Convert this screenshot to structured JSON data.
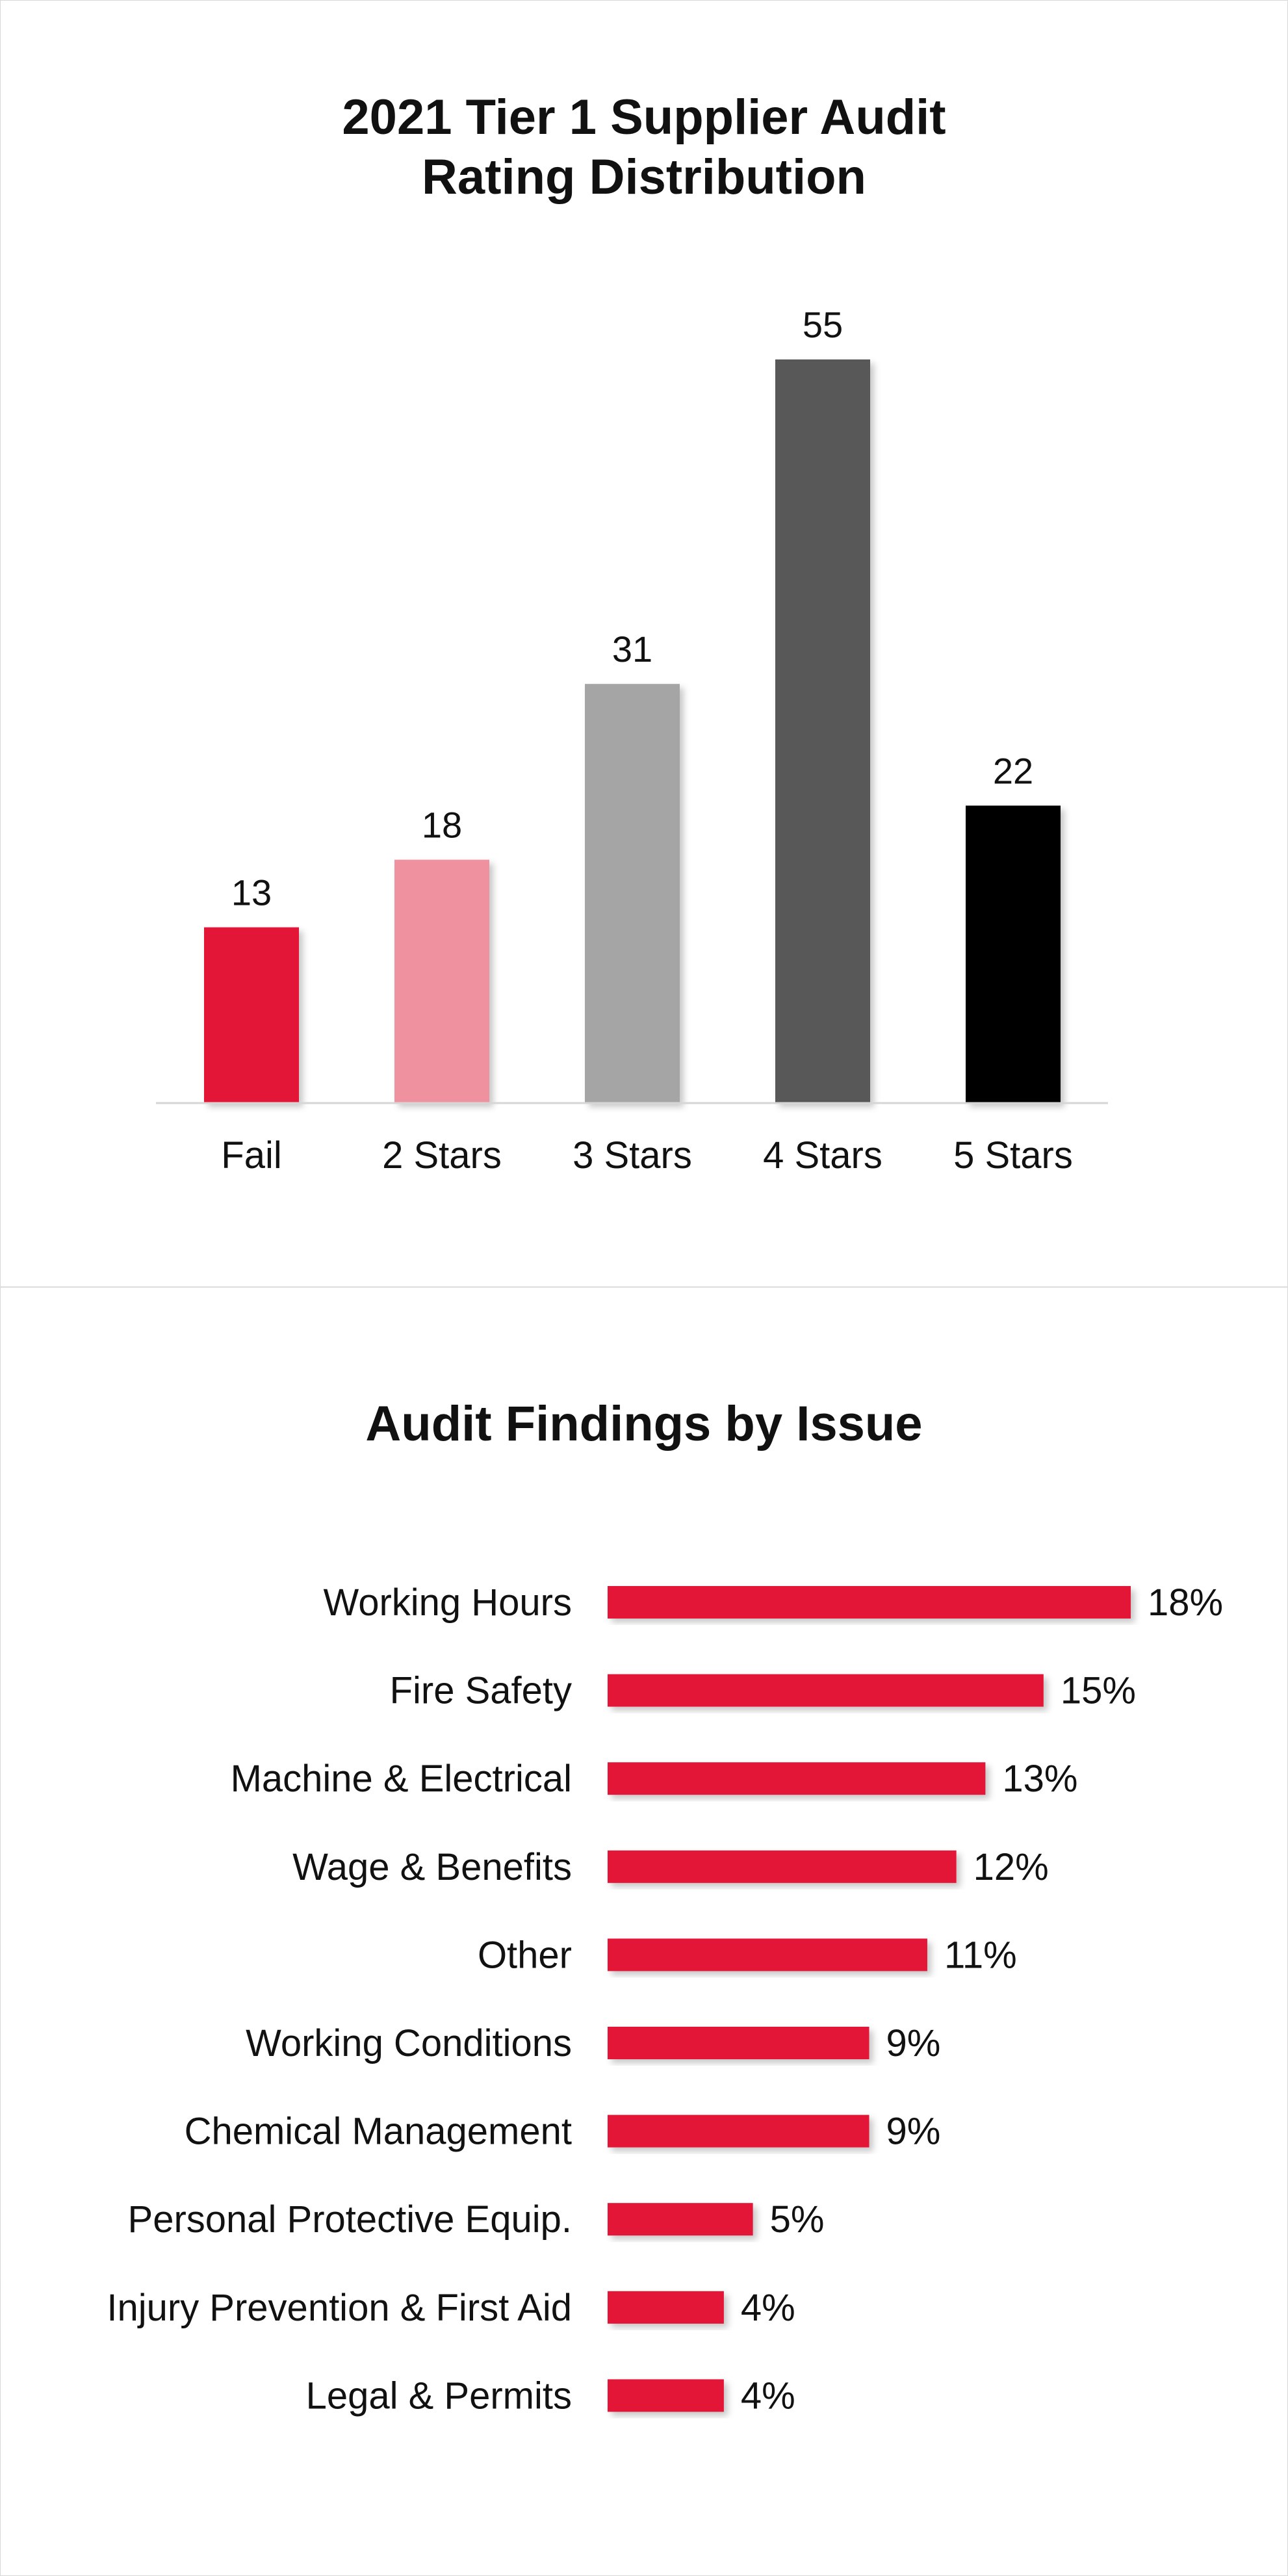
{
  "chart_data": [
    {
      "type": "bar",
      "title": "2021 Tier 1 Supplier Audit Rating Distribution",
      "title_lines": [
        "2021 Tier 1 Supplier Audit",
        "Rating Distribution"
      ],
      "categories": [
        "Fail",
        "2 Stars",
        "3 Stars",
        "4 Stars",
        "5 Stars"
      ],
      "values": [
        13,
        18,
        31,
        55,
        22
      ],
      "colors": [
        "#e31837",
        "#f0919f",
        "#a5a5a5",
        "#595959",
        "#000000"
      ],
      "xlabel": "",
      "ylabel": "",
      "ylim": [
        0,
        55
      ],
      "grid": false,
      "legend": "none"
    },
    {
      "type": "bar",
      "orientation": "horizontal",
      "title": "Audit Findings by Issue",
      "categories": [
        "Working Hours",
        "Fire Safety",
        "Machine & Electrical",
        "Wage & Benefits",
        "Other",
        "Working Conditions",
        "Chemical Management",
        "Personal Protective Equip.",
        "Injury Prevention & First Aid",
        "Legal & Permits"
      ],
      "values": [
        18,
        15,
        13,
        12,
        11,
        9,
        9,
        5,
        4,
        4
      ],
      "value_labels": [
        "18%",
        "15%",
        "13%",
        "12%",
        "11%",
        "9%",
        "9%",
        "5%",
        "4%",
        "4%"
      ],
      "unit": "%",
      "color": "#e31837",
      "xlim": [
        0,
        18
      ],
      "grid": false,
      "legend": "none"
    }
  ]
}
